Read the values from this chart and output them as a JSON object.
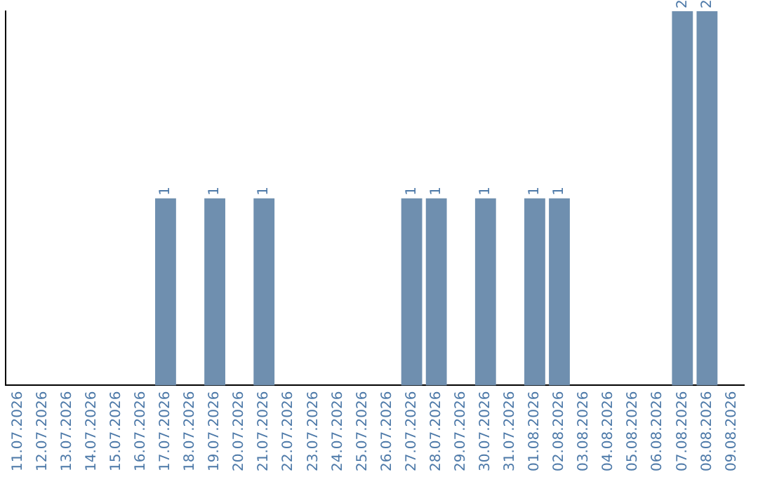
{
  "chart_data": {
    "type": "bar",
    "categories": [
      "11.07.2026",
      "12.07.2026",
      "13.07.2026",
      "14.07.2026",
      "15.07.2026",
      "16.07.2026",
      "17.07.2026",
      "18.07.2026",
      "19.07.2026",
      "20.07.2026",
      "21.07.2026",
      "22.07.2026",
      "23.07.2026",
      "24.07.2026",
      "25.07.2026",
      "26.07.2026",
      "27.07.2026",
      "28.07.2026",
      "29.07.2026",
      "30.07.2026",
      "31.07.2026",
      "01.08.2026",
      "02.08.2026",
      "03.08.2026",
      "04.08.2026",
      "05.08.2026",
      "06.08.2026",
      "07.08.2026",
      "08.08.2026",
      "09.08.2026"
    ],
    "values": [
      0,
      0,
      0,
      0,
      0,
      0,
      1,
      0,
      1,
      0,
      1,
      0,
      0,
      0,
      0,
      0,
      1,
      1,
      0,
      1,
      0,
      1,
      1,
      0,
      0,
      0,
      0,
      2,
      2,
      0
    ],
    "value_labels": [
      null,
      null,
      null,
      null,
      null,
      null,
      "1",
      null,
      "1",
      null,
      "1",
      null,
      null,
      null,
      null,
      null,
      "1",
      "1",
      null,
      "1",
      null,
      "1",
      "1",
      null,
      null,
      null,
      null,
      "2",
      "2",
      null
    ],
    "color": "#6f8faf",
    "grid": false,
    "legend": false,
    "tick_labels": "x"
  }
}
